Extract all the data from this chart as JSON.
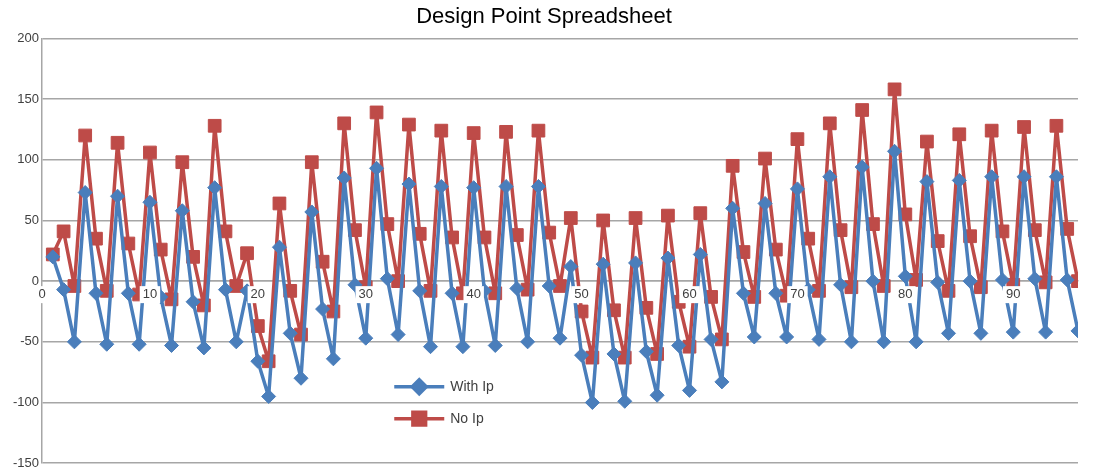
{
  "chart_data": {
    "type": "line",
    "title": "Design Point Spreadsheet",
    "x": [
      1,
      2,
      3,
      4,
      5,
      6,
      7,
      8,
      9,
      10,
      11,
      12,
      13,
      14,
      15,
      16,
      17,
      18,
      19,
      20,
      21,
      22,
      23,
      24,
      25,
      26,
      27,
      28,
      29,
      30,
      31,
      32,
      33,
      34,
      35,
      36,
      37,
      38,
      39,
      40,
      41,
      42,
      43,
      44,
      45,
      46,
      47,
      48,
      49,
      50,
      51,
      52,
      53,
      54,
      55,
      56,
      57,
      58,
      59,
      60,
      61,
      62,
      63,
      64,
      65,
      66,
      67,
      68,
      69,
      70,
      71,
      72,
      73,
      74,
      75,
      76,
      77,
      78,
      79,
      80,
      81,
      82,
      83,
      84,
      85,
      86,
      87,
      88,
      89,
      90,
      91,
      92,
      93,
      94,
      95,
      96
    ],
    "series": [
      {
        "name": "With Ip",
        "color": "#4a7ebb",
        "marker": "diamond",
        "values": [
          20,
          -7,
          -50,
          73,
          -10,
          -52,
          70,
          -10,
          -52,
          65,
          -13,
          -53,
          58,
          -17,
          -55,
          77,
          -7,
          -50,
          -8,
          -66,
          -95,
          28,
          -43,
          -80,
          57,
          -23,
          -64,
          85,
          -3,
          -47,
          93,
          2,
          -44,
          80,
          -8,
          -54,
          78,
          -10,
          -54,
          77,
          -8,
          -53,
          78,
          -6,
          -50,
          78,
          -4,
          -47,
          12,
          -61,
          -100,
          14,
          -60,
          -99,
          15,
          -58,
          -94,
          19,
          -53,
          -90,
          22,
          -48,
          -83,
          60,
          -10,
          -46,
          64,
          -10,
          -46,
          76,
          -7,
          -48,
          86,
          -3,
          -50,
          94,
          0,
          -50,
          107,
          4,
          -50,
          82,
          -1,
          -43,
          83,
          0,
          -43,
          86,
          1,
          -42,
          86,
          2,
          -42,
          86,
          1,
          -41
        ]
      },
      {
        "name": "No Ip",
        "color": "#be4b48",
        "marker": "square",
        "values": [
          22,
          41,
          -4,
          120,
          35,
          -8,
          114,
          31,
          -11,
          106,
          26,
          -15,
          98,
          20,
          -20,
          128,
          41,
          -4,
          23,
          -37,
          -66,
          64,
          -8,
          -44,
          98,
          16,
          -25,
          130,
          42,
          -5,
          139,
          47,
          0,
          129,
          39,
          -8,
          124,
          36,
          -10,
          122,
          36,
          -10,
          123,
          38,
          -7,
          124,
          40,
          -4,
          52,
          -25,
          -63,
          50,
          -24,
          -63,
          52,
          -22,
          -60,
          54,
          -17,
          -54,
          56,
          -13,
          -48,
          95,
          24,
          -13,
          101,
          26,
          -12,
          117,
          35,
          -8,
          130,
          42,
          -5,
          141,
          47,
          -4,
          158,
          55,
          1,
          115,
          33,
          -8,
          121,
          37,
          -5,
          124,
          41,
          -3,
          127,
          42,
          -1,
          128,
          43,
          0
        ]
      }
    ],
    "xlim": [
      0,
      96
    ],
    "xticks": [
      0,
      10,
      20,
      30,
      40,
      50,
      60,
      70,
      80,
      90
    ],
    "ylim": [
      -150,
      200
    ],
    "yticks": [
      -150,
      -100,
      -50,
      0,
      50,
      100,
      150,
      200
    ],
    "grid": "y",
    "legend": "bottom"
  }
}
